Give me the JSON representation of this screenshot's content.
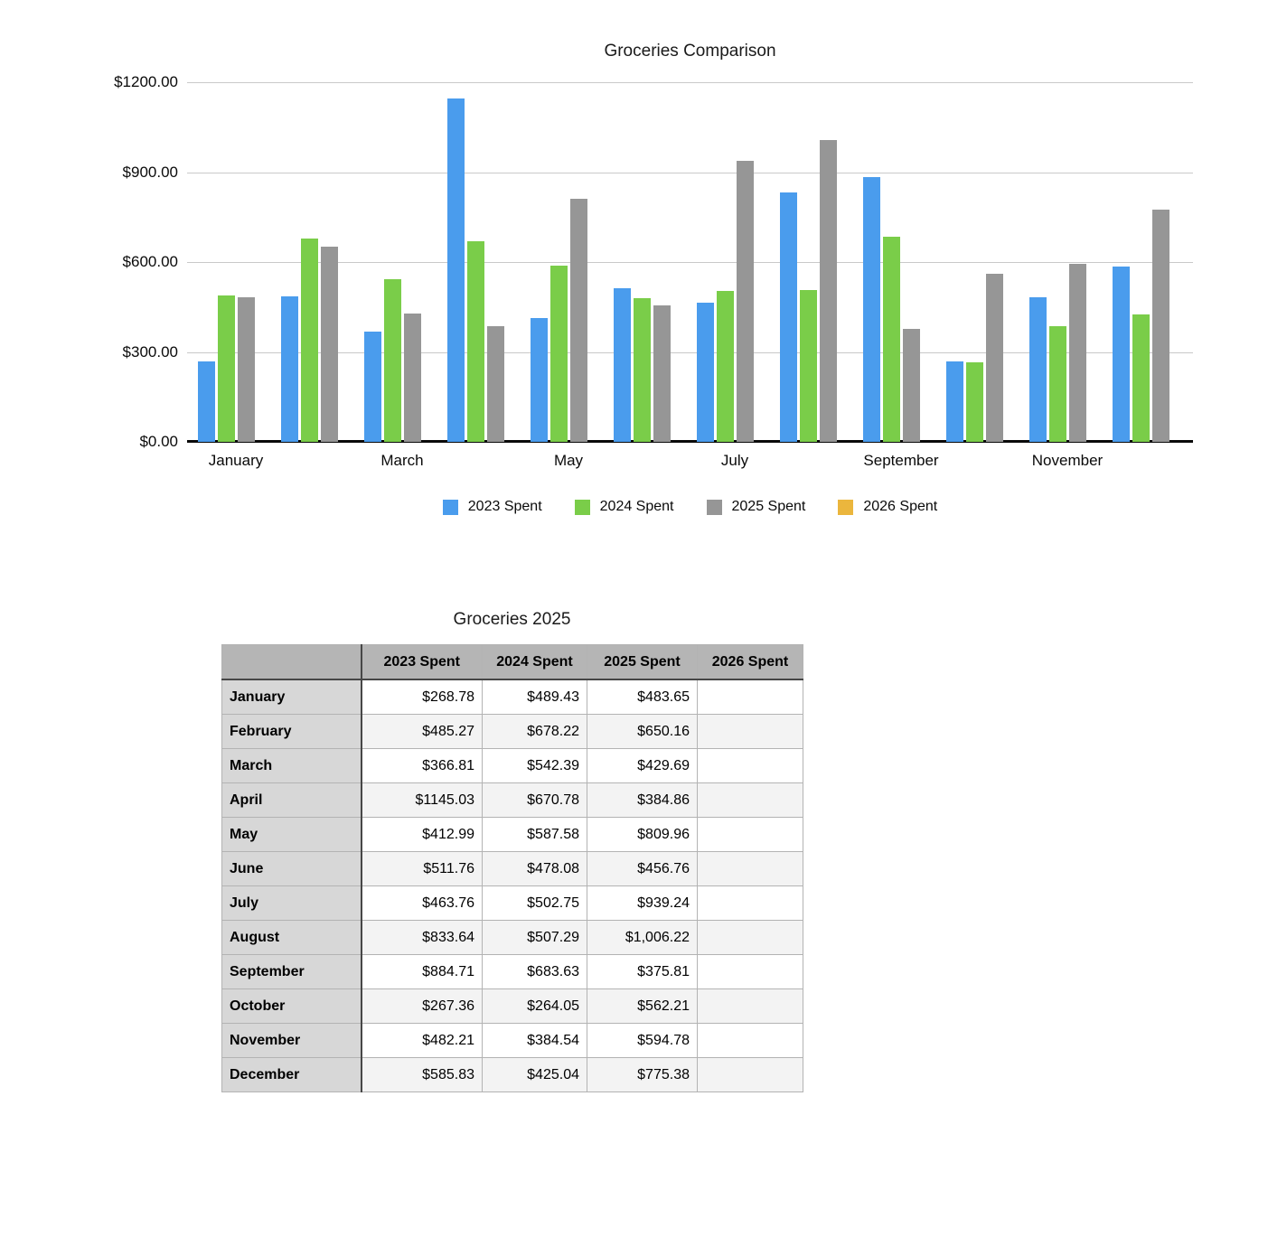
{
  "chart_data": {
    "type": "bar",
    "title": "Groceries Comparison",
    "xlabel": "",
    "ylabel": "",
    "ylim": [
      0,
      1200
    ],
    "y_ticks": [
      "$1200.00",
      "$900.00",
      "$600.00",
      "$300.00",
      "$0.00"
    ],
    "grid": true,
    "legend_position": "bottom",
    "categories": [
      "January",
      "February",
      "March",
      "April",
      "May",
      "June",
      "July",
      "August",
      "September",
      "October",
      "November",
      "December"
    ],
    "x_axis_shown_labels": [
      "January",
      "March",
      "May",
      "July",
      "September",
      "November"
    ],
    "series": [
      {
        "name": "2023 Spent",
        "color": "#4a9ced",
        "values": [
          268.78,
          485.27,
          366.81,
          1145.03,
          412.99,
          511.76,
          463.76,
          833.64,
          884.71,
          267.36,
          482.21,
          585.83
        ]
      },
      {
        "name": "2024 Spent",
        "color": "#7acd49",
        "values": [
          489.43,
          678.22,
          542.39,
          670.78,
          587.58,
          478.08,
          502.75,
          507.29,
          683.63,
          264.05,
          384.54,
          425.04
        ]
      },
      {
        "name": "2025 Spent",
        "color": "#969696",
        "values": [
          483.65,
          650.16,
          429.69,
          384.86,
          809.96,
          456.76,
          939.24,
          1006.22,
          375.81,
          562.21,
          594.78,
          775.38
        ]
      },
      {
        "name": "2026 Spent",
        "color": "#ebb63d",
        "values": [
          null,
          null,
          null,
          null,
          null,
          null,
          null,
          null,
          null,
          null,
          null,
          null
        ]
      }
    ]
  },
  "table": {
    "title": "Groceries 2025",
    "columns": [
      "",
      "2023 Spent",
      "2024 Spent",
      "2025 Spent",
      "2026 Spent"
    ],
    "rows": [
      {
        "month": "January",
        "values": [
          "$268.78",
          "$489.43",
          "$483.65",
          ""
        ]
      },
      {
        "month": "February",
        "values": [
          "$485.27",
          "$678.22",
          "$650.16",
          ""
        ]
      },
      {
        "month": "March",
        "values": [
          "$366.81",
          "$542.39",
          "$429.69",
          ""
        ]
      },
      {
        "month": "April",
        "values": [
          "$1145.03",
          "$670.78",
          "$384.86",
          ""
        ]
      },
      {
        "month": "May",
        "values": [
          "$412.99",
          "$587.58",
          "$809.96",
          ""
        ]
      },
      {
        "month": "June",
        "values": [
          "$511.76",
          "$478.08",
          "$456.76",
          ""
        ]
      },
      {
        "month": "July",
        "values": [
          "$463.76",
          "$502.75",
          "$939.24",
          ""
        ]
      },
      {
        "month": "August",
        "values": [
          "$833.64",
          "$507.29",
          "$1,006.22",
          ""
        ]
      },
      {
        "month": "September",
        "values": [
          "$884.71",
          "$683.63",
          "$375.81",
          ""
        ]
      },
      {
        "month": "October",
        "values": [
          "$267.36",
          "$264.05",
          "$562.21",
          ""
        ]
      },
      {
        "month": "November",
        "values": [
          "$482.21",
          "$384.54",
          "$594.78",
          ""
        ]
      },
      {
        "month": "December",
        "values": [
          "$585.83",
          "$425.04",
          "$775.38",
          ""
        ]
      }
    ]
  }
}
